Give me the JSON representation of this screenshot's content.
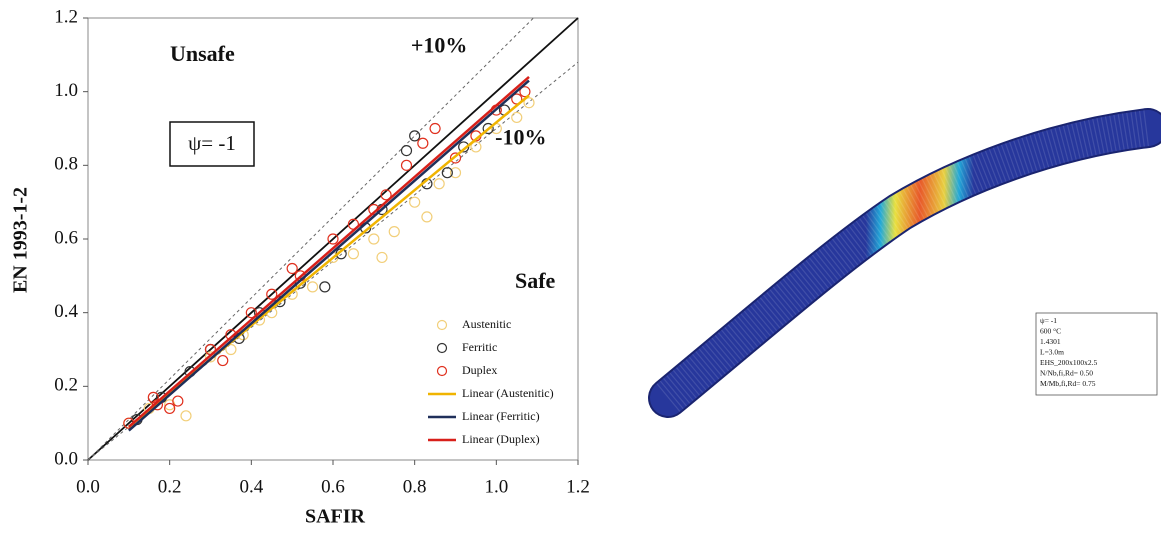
{
  "chart_data": {
    "type": "scatter",
    "x_label": "SAFIR",
    "y_label": "EN 1993-1-2",
    "xlim": [
      0,
      1.2
    ],
    "ylim": [
      0,
      1.2
    ],
    "xticks": [
      {
        "value": 0,
        "label": "0.0"
      },
      0.2,
      0.4,
      0.6,
      0.8,
      {
        "value": 1,
        "label": "1.0"
      },
      1.2
    ],
    "yticks": [
      {
        "value": 0,
        "label": "0.0"
      },
      0.2,
      0.4,
      0.6,
      0.8,
      {
        "value": 1,
        "label": "1.0"
      },
      1.2
    ],
    "annotations": {
      "unsafe": "Unsafe",
      "safe": "Safe",
      "psi": "ψ= -1"
    },
    "reference_lines": [
      {
        "slope": 1
      },
      {
        "slope": 1.1,
        "label": "+10%"
      },
      {
        "slope": 0.9,
        "label": "-10%"
      }
    ],
    "legend": "lower right",
    "series": [
      {
        "name": "Austenitic",
        "type": "scatter",
        "color": "#f2cf7a",
        "x": [
          0.1,
          0.15,
          0.2,
          0.24,
          0.3,
          0.35,
          0.38,
          0.42,
          0.45,
          0.5,
          0.55,
          0.6,
          0.65,
          0.7,
          0.72,
          0.75,
          0.8,
          0.83,
          0.86,
          0.9,
          0.95,
          1.0,
          1.05,
          1.08
        ],
        "values": [
          0.1,
          0.14,
          0.15,
          0.12,
          0.28,
          0.3,
          0.34,
          0.38,
          0.4,
          0.45,
          0.47,
          0.55,
          0.56,
          0.6,
          0.55,
          0.62,
          0.7,
          0.66,
          0.75,
          0.78,
          0.85,
          0.9,
          0.93,
          0.97
        ]
      },
      {
        "name": "Ferritic",
        "type": "scatter",
        "color": "#333333",
        "x": [
          0.12,
          0.18,
          0.25,
          0.3,
          0.37,
          0.42,
          0.47,
          0.52,
          0.58,
          0.62,
          0.68,
          0.72,
          0.78,
          0.8,
          0.83,
          0.88,
          0.92,
          0.98,
          1.02
        ],
        "values": [
          0.11,
          0.17,
          0.24,
          0.3,
          0.33,
          0.4,
          0.43,
          0.48,
          0.47,
          0.56,
          0.63,
          0.68,
          0.84,
          0.88,
          0.75,
          0.78,
          0.85,
          0.9,
          0.95
        ]
      },
      {
        "name": "Duplex",
        "type": "scatter",
        "color": "#e0301e",
        "x": [
          0.1,
          0.16,
          0.17,
          0.2,
          0.22,
          0.3,
          0.33,
          0.35,
          0.4,
          0.45,
          0.5,
          0.52,
          0.6,
          0.65,
          0.7,
          0.73,
          0.78,
          0.82,
          0.85,
          0.9,
          0.95,
          1.0,
          1.05,
          1.07
        ],
        "values": [
          0.1,
          0.17,
          0.15,
          0.14,
          0.16,
          0.3,
          0.27,
          0.34,
          0.4,
          0.45,
          0.52,
          0.5,
          0.6,
          0.64,
          0.68,
          0.72,
          0.8,
          0.86,
          0.9,
          0.82,
          0.88,
          0.95,
          0.98,
          1.0
        ]
      },
      {
        "name": "Linear (Austenitic)",
        "type": "line",
        "color": "#f0b400",
        "x": [
          0.1,
          1.08
        ],
        "values": [
          0.09,
          0.99
        ]
      },
      {
        "name": "Linear (Ferritic)",
        "type": "line",
        "color": "#1f2f5a",
        "x": [
          0.1,
          1.08
        ],
        "values": [
          0.08,
          1.03
        ]
      },
      {
        "name": "Linear (Duplex)",
        "type": "line",
        "color": "#d8201a",
        "x": [
          0.1,
          1.08
        ],
        "values": [
          0.09,
          1.04
        ]
      }
    ]
  },
  "model_info": {
    "lines": [
      "ψ= -1",
      "600 °C",
      "1.4301",
      "L=3.0m",
      "EHS_200x100x2.5",
      "N/Nb,fi,Rd= 0.50",
      "M/Mb,fi,Rd= 0.75"
    ]
  }
}
